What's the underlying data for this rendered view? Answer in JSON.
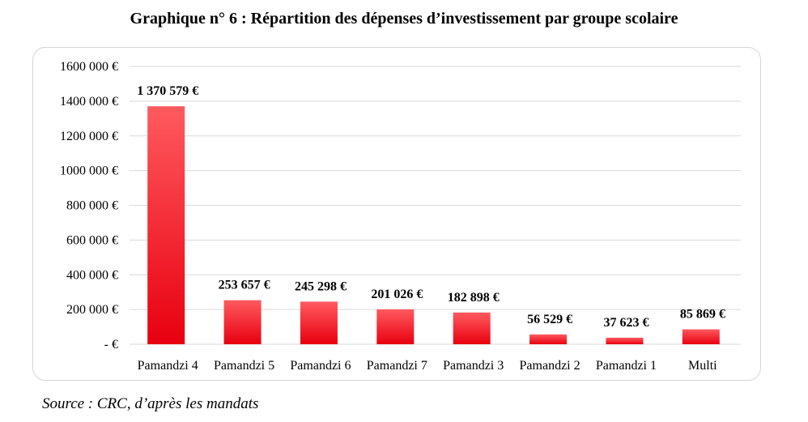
{
  "title": "Graphique n° 6 :  Répartition des dépenses d’investissement par groupe scolaire",
  "source": "Source : CRC, d’après les mandats",
  "chart_data": {
    "type": "bar",
    "categories": [
      "Pamandzi 4",
      "Pamandzi 5",
      "Pamandzi 6",
      "Pamandzi 7",
      "Pamandzi 3",
      "Pamandzi 2",
      "Pamandzi 1",
      "Multi"
    ],
    "values": [
      1370579,
      253657,
      245298,
      201026,
      182898,
      56529,
      37623,
      85869
    ],
    "value_labels": [
      "1 370 579 €",
      "253 657 €",
      "245 298 €",
      "201 026 €",
      "182 898 €",
      "56 529 €",
      "37 623 €",
      "85 869 €"
    ],
    "yticks": [
      0,
      200000,
      400000,
      600000,
      800000,
      1000000,
      1200000,
      1400000,
      1600000
    ],
    "ytick_labels": [
      "-   €",
      "200 000 €",
      "400 000 €",
      "600 000 €",
      "800 000 €",
      "1000 000 €",
      "1200 000 €",
      "1400 000 €",
      "1600 000 €"
    ],
    "ylim": [
      0,
      1600000
    ],
    "grid": true,
    "bar_color": "#e8000f",
    "bar_color_light": "#ff5a5f"
  }
}
